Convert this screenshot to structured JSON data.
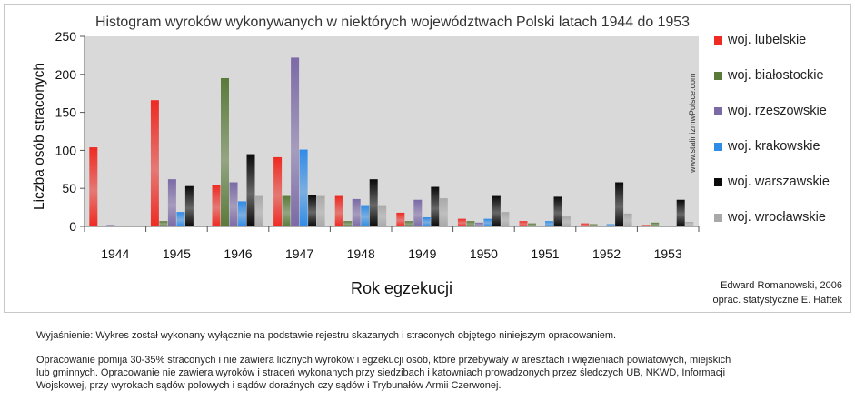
{
  "chart_data": {
    "type": "bar",
    "title": "Histogram wyroków wykonywanych w  niektórych województwach Polski  latach 1944 do 1953",
    "xlabel": "Rok  egzekucji",
    "ylabel": "Liczba osób straconych",
    "ylim": [
      0,
      250
    ],
    "yticks": [
      "0",
      "50",
      "100",
      "150",
      "200",
      "250"
    ],
    "categories": [
      "1944",
      "1945",
      "1946",
      "1947",
      "1948",
      "1949",
      "1950",
      "1951",
      "1952",
      "1953"
    ],
    "grid": false,
    "legend_position": "right",
    "series": [
      {
        "name": "woj. lubelskie",
        "color": "#ee2a22",
        "values": [
          104,
          166,
          55,
          91,
          40,
          18,
          10,
          7,
          4,
          2
        ]
      },
      {
        "name": "woj. białostockie",
        "color": "#5a7a3a",
        "values": [
          0,
          7,
          195,
          40,
          7,
          7,
          7,
          4,
          3,
          5
        ]
      },
      {
        "name": "woj. rzeszowskie",
        "color": "#7b6aa6",
        "values": [
          2,
          62,
          58,
          222,
          36,
          35,
          5,
          0,
          0,
          0
        ]
      },
      {
        "name": "woj. krakowskie",
        "color": "#2f8be6",
        "values": [
          0,
          19,
          33,
          101,
          28,
          12,
          10,
          7,
          3,
          0
        ]
      },
      {
        "name": "woj. warszawskie",
        "color": "#0a0a0a",
        "values": [
          0,
          53,
          95,
          41,
          62,
          52,
          40,
          39,
          58,
          35
        ]
      },
      {
        "name": "woj. wrocławskie",
        "color": "#a9a9a9",
        "values": [
          0,
          0,
          40,
          40,
          28,
          37,
          19,
          13,
          17,
          6
        ]
      }
    ]
  },
  "watermark": "www.stalinizmwPolsce.com",
  "credit": {
    "author": "Edward Romanowski,  2006",
    "stats": "oprac. statystyczne  E. Haftek"
  },
  "notes": {
    "line1": "Wyjaśnienie: Wykres został wykonany wyłącznie na  podstawie rejestru skazanych i  straconych  objętego niniejszym opracowaniem.",
    "line2": "Opracowanie pomija 30-35% straconych i nie zawiera licznych  wyroków i egzekucji osób, które przebywały w aresztach i więzieniach powiatowych, miejskich",
    "line3": "lub gminnych. Opracowanie nie zawiera wyroków i straceń wykonanych przy siedzibach i katowniach prowadzonych przez śledczych UB, NKWD, Informacji",
    "line4": "Wojskowej, przy wyrokach sądów polowych i sądów doraźnych czy sądów i Trybunałów Armii Czerwonej."
  }
}
